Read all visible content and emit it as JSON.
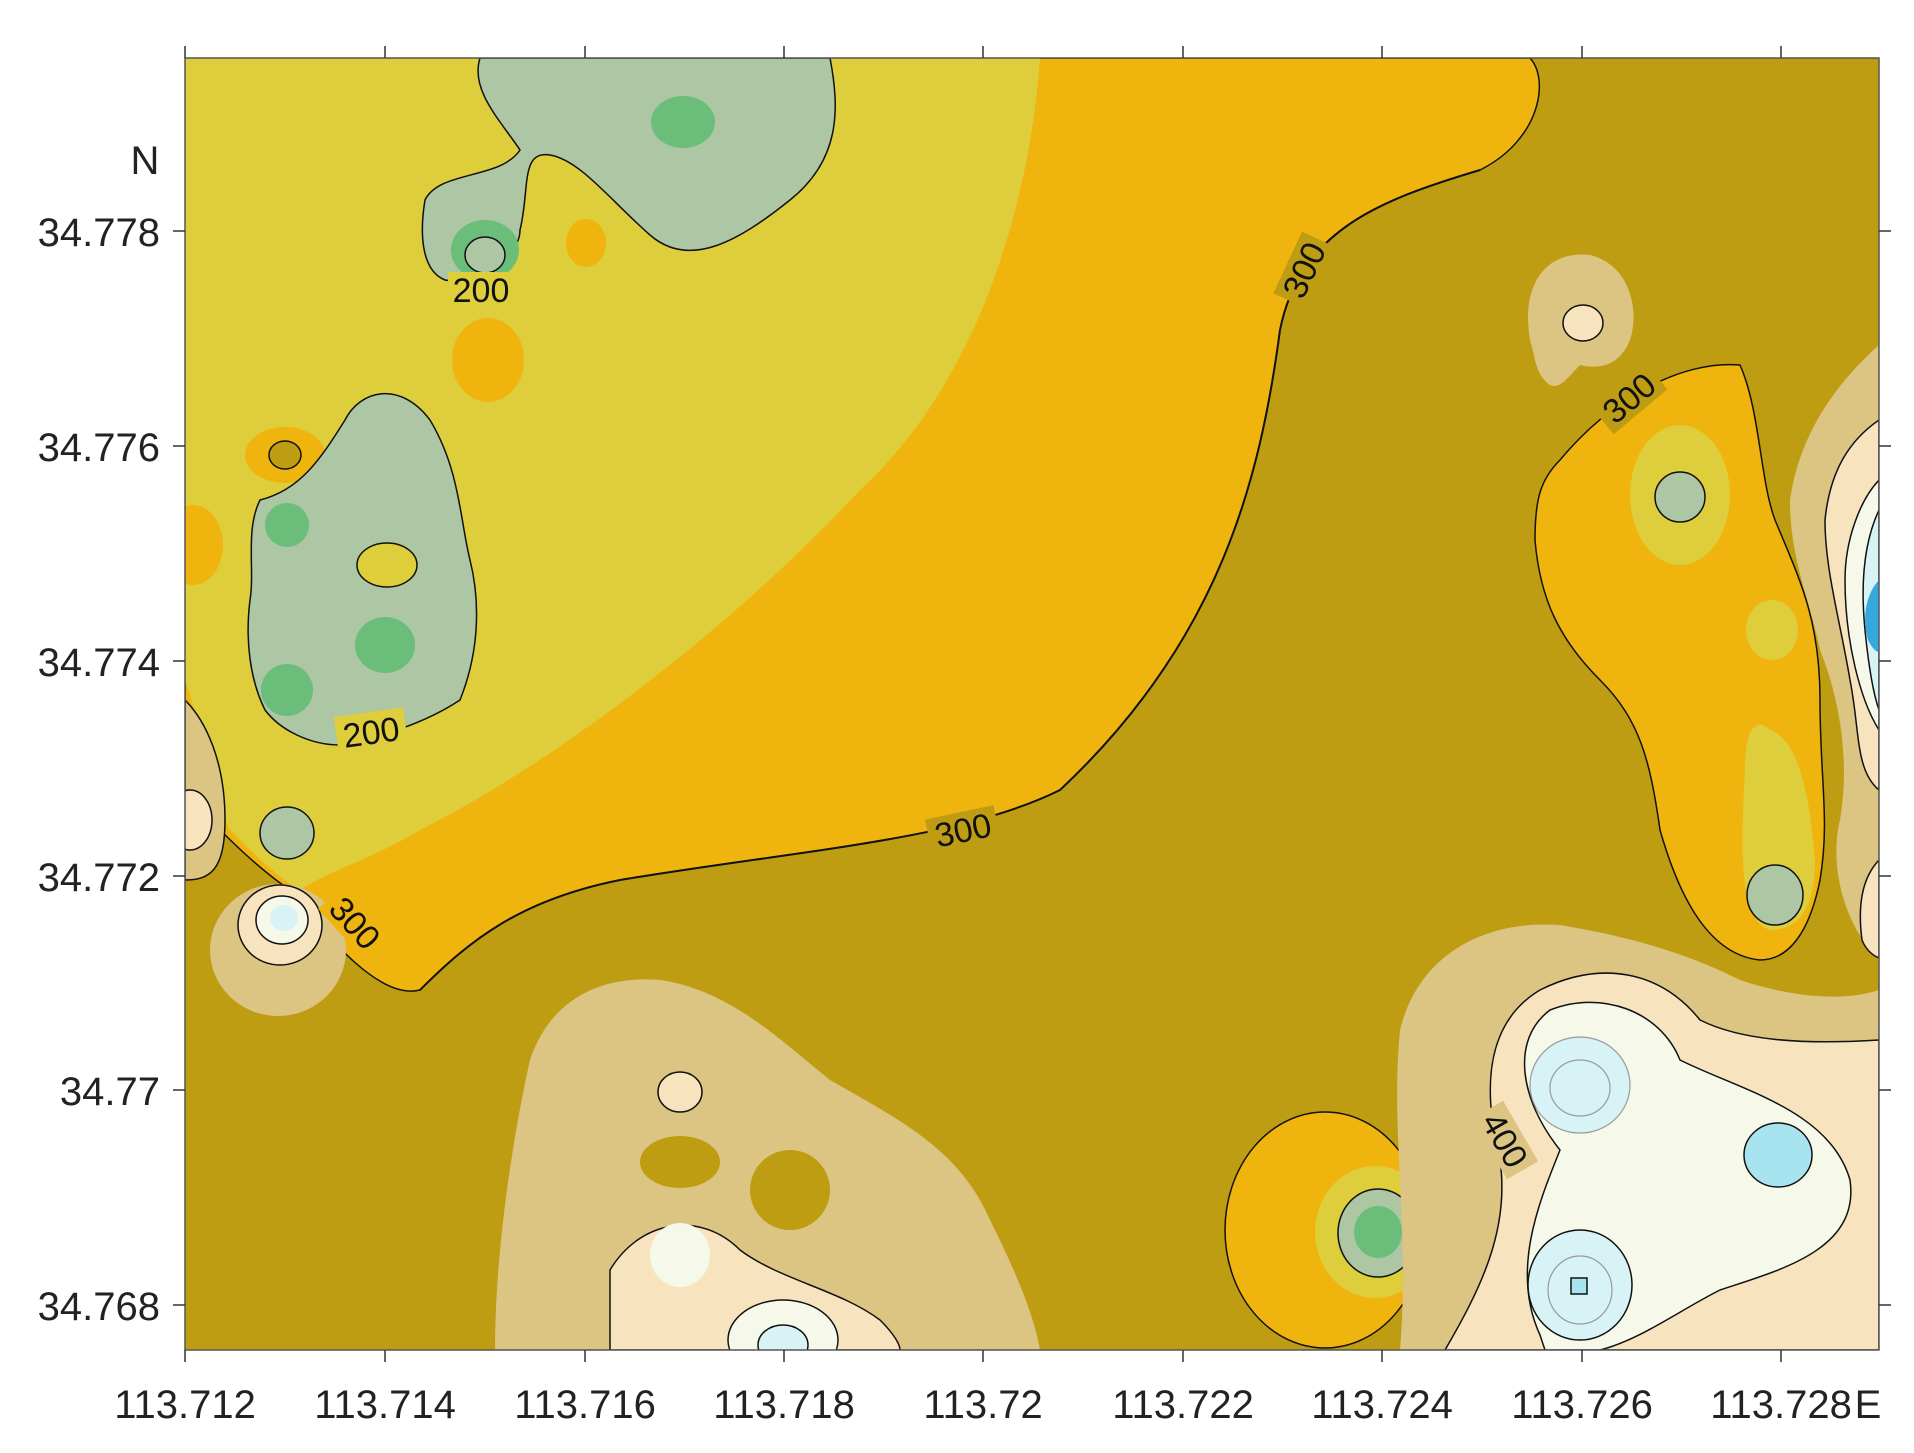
{
  "map": {
    "north_label": "N",
    "east_label": "E",
    "x_ticks": [
      "113.712",
      "113.714",
      "113.716",
      "113.718",
      "113.72",
      "113.722",
      "113.724",
      "113.726",
      "113.728"
    ],
    "y_ticks": [
      "34.778",
      "34.776",
      "34.774",
      "34.772",
      "34.77",
      "34.768"
    ],
    "contour_labels": [
      "200",
      "200",
      "300",
      "300",
      "300",
      "300",
      "400"
    ],
    "colors": {
      "olive": "#bf9d13",
      "amber": "#f0b40e",
      "yellow": "#dece3c",
      "sage": "#adc6a3",
      "green": "#6bbd7a",
      "tan": "#dcc482",
      "cream": "#f7e4bf",
      "ivory": "#f6f8ea",
      "ice": "#d8f3f6",
      "cyan": "#a8e4ef",
      "blue": "#35a8de"
    }
  }
}
